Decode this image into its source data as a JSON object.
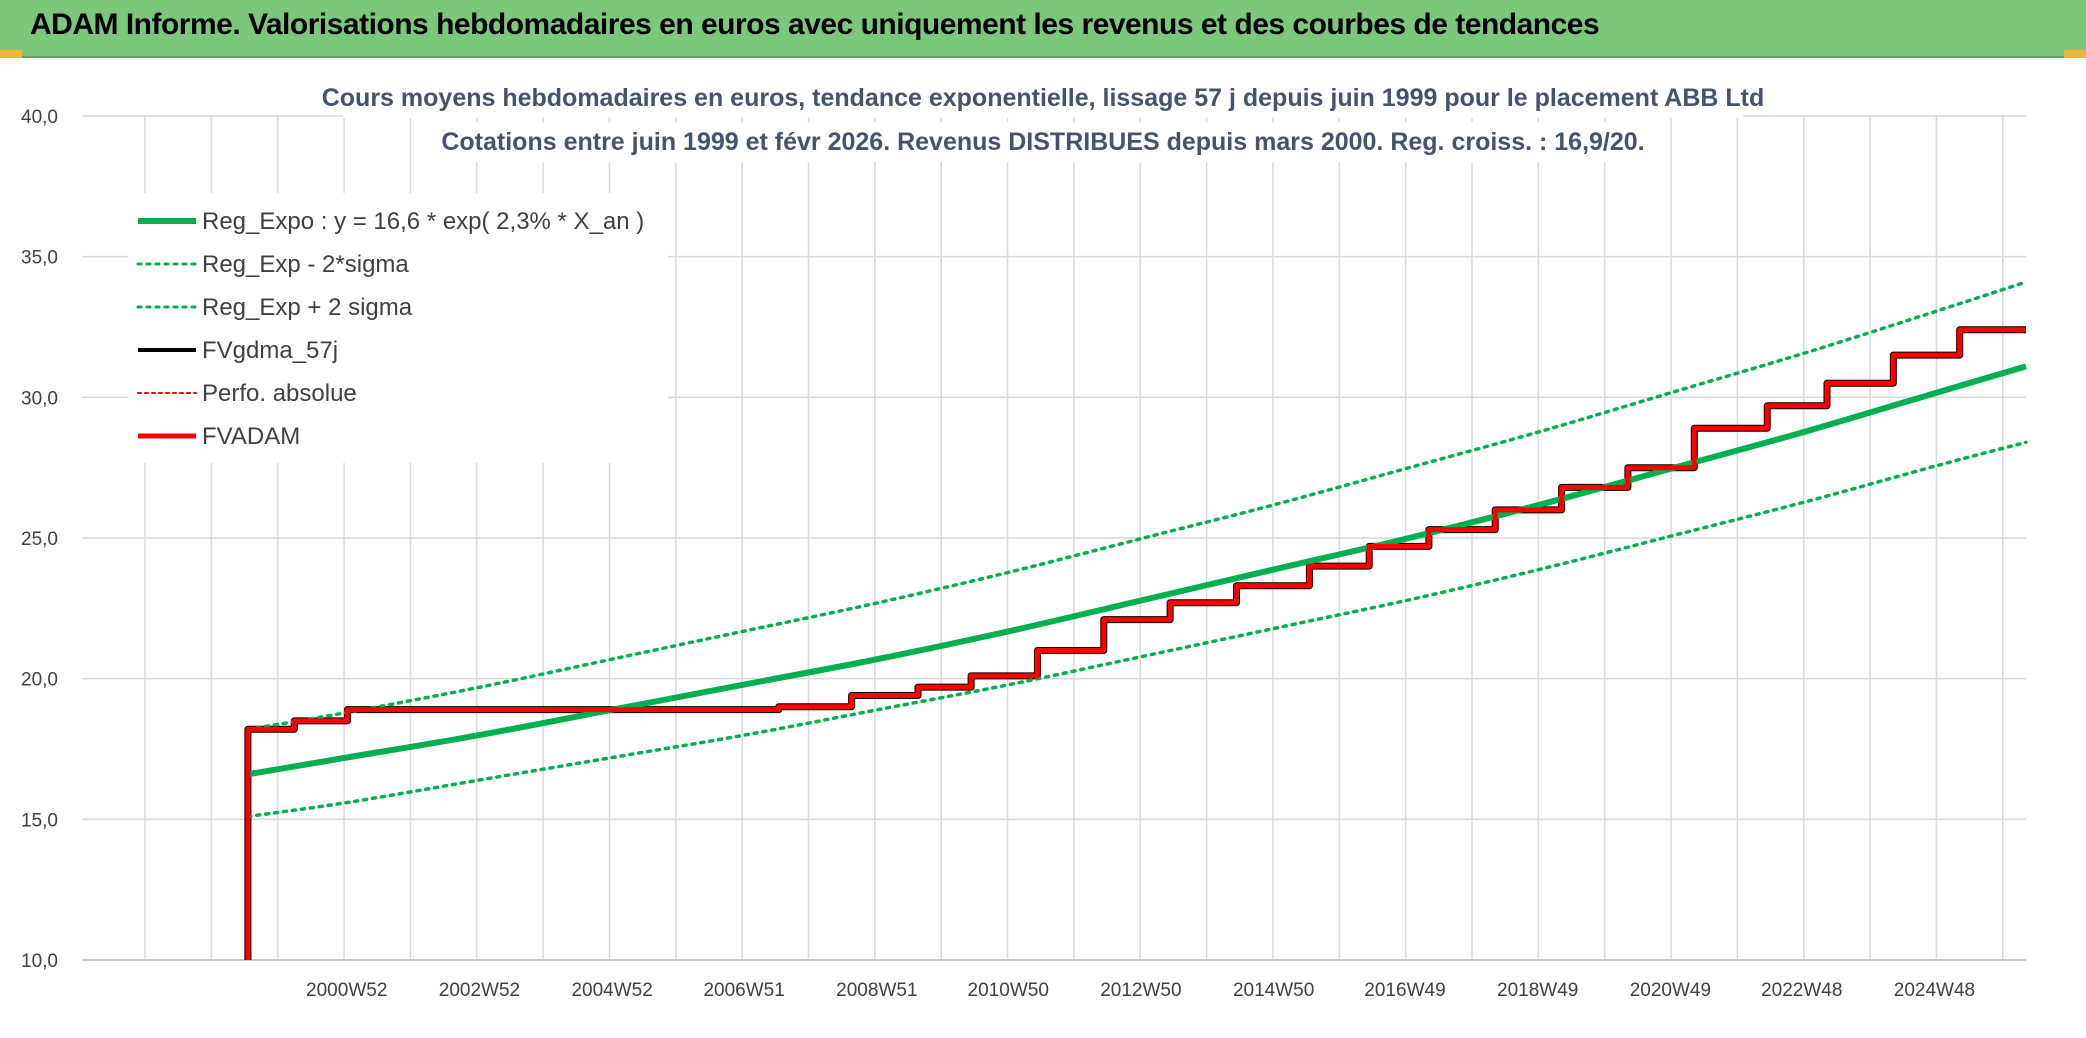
{
  "banner": {
    "title": "ADAM Informe. Valorisations hebdomadaires en euros avec uniquement les revenus et des courbes de tendances"
  },
  "colors": {
    "banner_bg": "#7dc77d",
    "green_trend": "#00b050",
    "red_fvadam": "#ff0000",
    "black_fv": "#000000",
    "grid": "#d9d9d9"
  },
  "chart_data": {
    "type": "line",
    "title_lines": [
      "Cours moyens hebdomadaires en euros, tendance exponentielle, lissage 57 j depuis juin 1999 pour le placement ABB Ltd",
      "Cotations entre juin 1999 et févr 2026. Revenus DISTRIBUES depuis mars 2000. Reg. croiss. : 16,9/20."
    ],
    "xlabel": "",
    "ylabel": "",
    "x_tick_labels": [
      "2000W52",
      "2002W52",
      "2004W52",
      "2006W51",
      "2008W51",
      "2010W50",
      "2012W50",
      "2014W50",
      "2016W49",
      "2018W49",
      "2020W49",
      "2022W48",
      "2024W48"
    ],
    "x_tick_years": [
      2000.99,
      2002.99,
      2004.99,
      2006.98,
      2008.98,
      2010.96,
      2012.96,
      2014.96,
      2016.94,
      2018.94,
      2020.94,
      2022.92,
      2024.92
    ],
    "x_range": [
      1997.0,
      2026.3
    ],
    "ylim": [
      10,
      40
    ],
    "y_ticks": [
      10,
      15,
      20,
      25,
      30,
      35,
      40
    ],
    "y_tick_labels": [
      "10,0",
      "15,0",
      "20,0",
      "25,0",
      "30,0",
      "35,0",
      "40,0"
    ],
    "grid": true,
    "legend_position": "top-left",
    "legend": [
      {
        "label": "Reg_Expo : y = 16,6 * exp( 2,3% *  X_an )",
        "color": "#00b050",
        "style": "solid",
        "width": 6
      },
      {
        "label": "Reg_Exp - 2*sigma",
        "color": "#00b050",
        "style": "dotted",
        "width": 3
      },
      {
        "label": "Reg_Exp + 2 sigma",
        "color": "#00b050",
        "style": "dotted",
        "width": 3
      },
      {
        "label": "FVgdma_57j",
        "color": "#000000",
        "style": "solid",
        "width": 4
      },
      {
        "label": "Perfo. absolue",
        "color": "#ff0000",
        "style": "dotted",
        "width": 2
      },
      {
        "label": "FVADAM",
        "color": "#ff0000",
        "style": "solid",
        "width": 5
      }
    ],
    "series": [
      {
        "name": "Reg_Expo : y = 16,6 * exp( 2,3% *  X_an )",
        "x": [
          1999.5,
          2001.0,
          2003.0,
          2005.0,
          2007.0,
          2009.0,
          2011.0,
          2013.0,
          2015.0,
          2017.0,
          2019.0,
          2021.0,
          2023.0,
          2025.0,
          2026.3
        ],
        "y": [
          16.6,
          17.2,
          18.0,
          18.9,
          19.8,
          20.7,
          21.7,
          22.8,
          23.9,
          25.0,
          26.2,
          27.5,
          28.8,
          30.2,
          31.1
        ]
      },
      {
        "name": "Reg_Exp - 2*sigma",
        "x": [
          1999.5,
          2001.0,
          2003.0,
          2005.0,
          2007.0,
          2009.0,
          2011.0,
          2013.0,
          2015.0,
          2017.0,
          2019.0,
          2021.0,
          2023.0,
          2025.0,
          2026.3
        ],
        "y": [
          15.1,
          15.6,
          16.4,
          17.2,
          18.0,
          18.9,
          19.8,
          20.8,
          21.8,
          22.8,
          23.9,
          25.1,
          26.3,
          27.6,
          28.4
        ]
      },
      {
        "name": "Reg_Exp + 2 sigma",
        "x": [
          1999.5,
          2001.0,
          2003.0,
          2005.0,
          2007.0,
          2009.0,
          2011.0,
          2013.0,
          2015.0,
          2017.0,
          2019.0,
          2021.0,
          2023.0,
          2025.0,
          2026.3
        ],
        "y": [
          18.2,
          18.8,
          19.7,
          20.7,
          21.7,
          22.7,
          23.8,
          25.0,
          26.2,
          27.5,
          28.8,
          30.2,
          31.6,
          33.1,
          34.1
        ]
      },
      {
        "name": "FVADAM",
        "x": [
          1999.5,
          1999.5,
          2000.2,
          2000.2,
          2001.0,
          2001.0,
          2007.5,
          2007.5,
          2008.6,
          2008.6,
          2009.6,
          2009.6,
          2010.4,
          2010.4,
          2011.4,
          2011.4,
          2012.4,
          2012.4,
          2013.4,
          2013.4,
          2014.4,
          2014.4,
          2015.5,
          2015.5,
          2016.4,
          2016.4,
          2017.3,
          2017.3,
          2018.3,
          2018.3,
          2019.3,
          2019.3,
          2020.3,
          2020.3,
          2021.3,
          2021.3,
          2022.4,
          2022.4,
          2023.3,
          2023.3,
          2024.3,
          2024.3,
          2025.3,
          2025.3,
          2026.3
        ],
        "y": [
          10.0,
          18.2,
          18.2,
          18.5,
          18.5,
          18.9,
          18.9,
          19.0,
          19.0,
          19.4,
          19.4,
          19.7,
          19.7,
          20.1,
          20.1,
          21.0,
          21.0,
          22.1,
          22.1,
          22.7,
          22.7,
          23.3,
          23.3,
          24.0,
          24.0,
          24.7,
          24.7,
          25.3,
          25.3,
          26.0,
          26.0,
          26.8,
          26.8,
          27.5,
          27.5,
          28.9,
          28.9,
          29.7,
          29.7,
          30.5,
          30.5,
          31.5,
          31.5,
          32.4,
          32.4
        ]
      }
    ]
  }
}
